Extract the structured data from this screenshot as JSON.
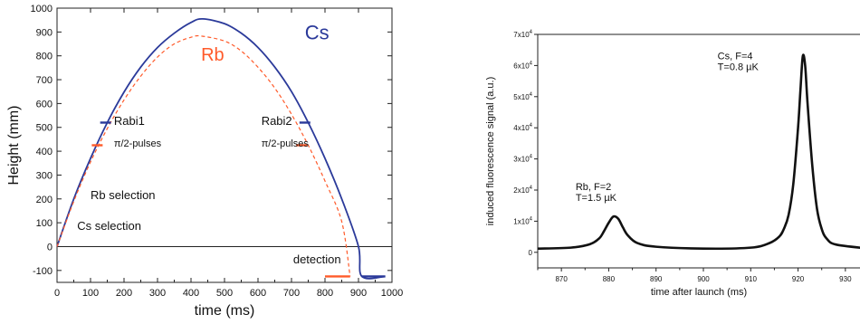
{
  "chart_data": [
    {
      "type": "line",
      "xlabel": "time (ms)",
      "ylabel": "Height (mm)",
      "xlim": [
        0,
        1000
      ],
      "ylim": [
        -150,
        1000
      ],
      "x_ticks": [
        "0",
        "100",
        "200",
        "300",
        "400",
        "500",
        "600",
        "700",
        "800",
        "900",
        "1000"
      ],
      "y_ticks": [
        "-100",
        "0",
        "100",
        "200",
        "300",
        "400",
        "500",
        "600",
        "700",
        "800",
        "900",
        "1000"
      ],
      "series": [
        {
          "name": "Cs",
          "color": "#2b3a9a",
          "style": "solid",
          "x": [
            0,
            50,
            100,
            150,
            200,
            250,
            300,
            350,
            400,
            435,
            500,
            550,
            600,
            650,
            700,
            750,
            800,
            850,
            900,
            910,
            980
          ],
          "y": [
            0,
            200,
            370,
            520,
            648,
            753,
            835,
            895,
            940,
            955,
            935,
            895,
            835,
            753,
            650,
            520,
            370,
            200,
            0,
            -125,
            -125
          ]
        },
        {
          "name": "Rb",
          "color": "#ff5a2a",
          "style": "dashed",
          "x": [
            0,
            50,
            100,
            150,
            200,
            250,
            300,
            350,
            400,
            430,
            500,
            550,
            600,
            650,
            700,
            750,
            800,
            850,
            875
          ],
          "y": [
            0,
            190,
            355,
            495,
            615,
            715,
            795,
            850,
            878,
            883,
            862,
            820,
            752,
            665,
            555,
            425,
            275,
            105,
            -125
          ]
        }
      ],
      "annotations": {
        "cs_label": "Cs",
        "rb_label": "Rb",
        "rabi1": "Rabi1",
        "rabi1_sub": "π/2-pulses",
        "rabi2": "Rabi2",
        "rabi2_sub": "π/2-pulses",
        "rb_selection": "Rb selection",
        "cs_selection": "Cs selection",
        "detection": "detection"
      },
      "markers": {
        "rabi1_cs": [
          145,
          520
        ],
        "rabi1_rb": [
          120,
          425
        ],
        "rabi2_cs": [
          740,
          520
        ],
        "rabi2_rb": [
          730,
          425
        ],
        "detection_cs": [
          910,
          980,
          -125
        ],
        "detection_rb": [
          800,
          875,
          -125
        ]
      }
    },
    {
      "type": "line",
      "xlabel": "time after launch (ms)",
      "ylabel": "induced fluorescence signal (a.u.)",
      "xlim": [
        865,
        935
      ],
      "ylim": [
        -5000,
        70000
      ],
      "x_ticks": [
        "870",
        "880",
        "890",
        "900",
        "910",
        "920",
        "930"
      ],
      "y_ticks": [
        "0",
        "1x10^4",
        "2x10^4",
        "3x10^4",
        "4x10^4",
        "5x10^4",
        "6x10^4",
        "7x10^4"
      ],
      "series": [
        {
          "color": "#111111",
          "x": [
            865,
            872,
            876,
            878,
            879,
            880,
            881,
            882,
            883,
            884,
            886,
            890,
            900,
            910,
            914,
            916,
            917,
            918,
            919,
            920,
            920.5,
            921,
            921.5,
            922,
            923,
            924,
            925,
            926,
            928,
            935
          ],
          "y": [
            1200,
            1500,
            2600,
            4500,
            6800,
            9500,
            11500,
            10800,
            8000,
            5500,
            3000,
            1800,
            1200,
            1500,
            3000,
            5000,
            7500,
            12000,
            22000,
            40000,
            52000,
            63000,
            60000,
            48000,
            28000,
            14000,
            7500,
            4500,
            2500,
            1200
          ]
        }
      ],
      "annotations": {
        "cs_label": "Cs, F=4",
        "cs_temp": "T=0.8 µK",
        "rb_label": "Rb, F=2",
        "rb_temp": "T=1.5 µK"
      }
    }
  ]
}
